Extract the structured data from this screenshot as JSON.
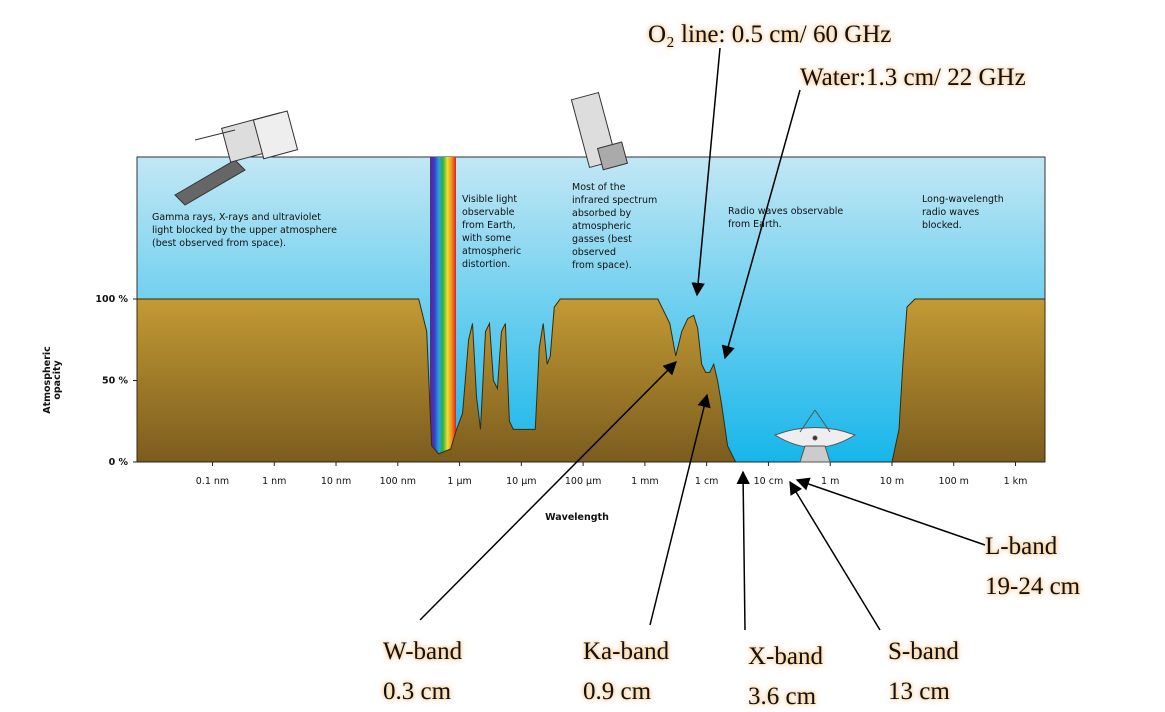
{
  "chart_data": {
    "type": "area",
    "xlabel": "Wavelength",
    "ylabel": [
      "Atmospheric",
      "opacity"
    ],
    "xscale": "log",
    "xlim": [
      6e-12,
      3000
    ],
    "xticks": [
      {
        "value": 1e-10,
        "label": "0.1 nm"
      },
      {
        "value": 1e-09,
        "label": "1 nm"
      },
      {
        "value": 1e-08,
        "label": "10 nm"
      },
      {
        "value": 1e-07,
        "label": "100 nm"
      },
      {
        "value": 1e-06,
        "label": "1 µm"
      },
      {
        "value": 1e-05,
        "label": "10 µm"
      },
      {
        "value": 0.0001,
        "label": "100 µm"
      },
      {
        "value": 0.001,
        "label": "1 mm"
      },
      {
        "value": 0.01,
        "label": "1 cm"
      },
      {
        "value": 0.1,
        "label": "10 cm"
      },
      {
        "value": 1,
        "label": "1 m"
      },
      {
        "value": 10,
        "label": "10 m"
      },
      {
        "value": 100,
        "label": "100 m"
      },
      {
        "value": 1000,
        "label": "1 km"
      }
    ],
    "ylim": [
      0,
      100
    ],
    "yticks": [
      {
        "value": 0,
        "label": "0 %"
      },
      {
        "value": 50,
        "label": "50 %"
      },
      {
        "value": 100,
        "label": "100 %"
      }
    ],
    "color": "#a8822a",
    "x": [
      6e-12,
      2.18e-07,
      2.94e-07,
      3.53e-07,
      4.58e-07,
      7.16e-07,
      8.95e-07,
      1.12e-06,
      1.4e-06,
      1.62e-06,
      1.88e-06,
      2.18e-06,
      2.63e-06,
      3.05e-06,
      3.53e-06,
      4.1e-06,
      4.76e-06,
      5.52e-06,
      6.4e-06,
      7.43e-06,
      1.08e-05,
      1.68e-05,
      1.95e-05,
      2.26e-05,
      2.62e-05,
      2.94e-05,
      3.41e-05,
      4.26e-05,
      0.00162,
      0.00253,
      0.00316,
      0.00395,
      0.00494,
      0.00617,
      0.00716,
      0.0083,
      0.00963,
      0.0112,
      0.013,
      0.015,
      0.0175,
      0.0218,
      0.0294,
      10,
      13,
      15,
      17.5,
      23.5,
      3000
    ],
    "values": [
      100,
      100,
      80,
      10,
      5,
      8,
      20,
      30,
      75,
      85,
      40,
      20,
      80,
      85,
      50,
      45,
      80,
      85,
      25,
      20,
      20,
      20,
      70,
      85,
      60,
      65,
      95,
      100,
      100,
      85,
      65,
      80,
      88,
      90,
      82,
      60,
      55,
      55,
      60,
      50,
      35,
      10,
      0,
      0,
      20,
      60,
      95,
      100,
      100
    ],
    "regions": [
      {
        "lines": [
          "Gamma rays, X-rays and ultraviolet",
          "light blocked by the upper atmosphere",
          "(best observed from space)."
        ]
      },
      {
        "lines": [
          "Visible light",
          "observable",
          "from Earth,",
          "with some",
          "atmospheric",
          "distortion."
        ]
      },
      {
        "lines": [
          "Most of the",
          "infrared spectrum",
          "absorbed by",
          "atmospheric",
          "gasses (best",
          "observed",
          "from space)."
        ]
      },
      {
        "lines": [
          "Radio waves observable",
          "from Earth."
        ]
      },
      {
        "lines": [
          "Long-wavelength",
          "radio waves",
          "blocked."
        ]
      }
    ],
    "annotations": [
      {
        "lines": [
          "O₂ line: 0.5 cm/ 60 GHz"
        ]
      },
      {
        "lines": [
          "Water:1.3 cm/ 22 GHz"
        ]
      },
      {
        "lines": [
          "W-band",
          "0.3 cm"
        ]
      },
      {
        "lines": [
          "Ka-band",
          "0.9 cm"
        ]
      },
      {
        "lines": [
          "X-band",
          "3.6 cm"
        ]
      },
      {
        "lines": [
          "S-band",
          "13 cm"
        ]
      },
      {
        "lines": [
          "L-band",
          "19-24 cm"
        ]
      }
    ]
  }
}
